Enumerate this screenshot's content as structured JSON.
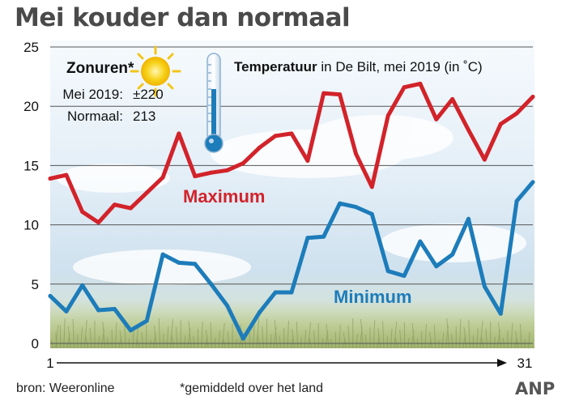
{
  "header": {
    "title": "Mei kouder dan normaal"
  },
  "sun_box": {
    "heading": "Zonuren*",
    "rows": [
      {
        "label": "Mei 2019:",
        "value": "±220"
      },
      {
        "label": "Normaal:",
        "value": "213"
      }
    ]
  },
  "footer": {
    "source": "bron: Weeronline",
    "note": "*gemiddeld over het land",
    "brand": "ANP"
  },
  "colors": {
    "maximum": "#d2232a",
    "minimum": "#1d7cba",
    "grid": "#555555"
  },
  "chart_data": {
    "type": "line",
    "title_bold": "Temperatuur",
    "title_rest": " in De Bilt, mei 2019 (in ˚C)",
    "ylim": [
      0,
      25
    ],
    "yticks": [
      "0",
      "5",
      "10",
      "15",
      "20",
      "25"
    ],
    "xlim": [
      1,
      31
    ],
    "x_start_label": "1",
    "x_end_label": "31",
    "grid": true,
    "x": [
      1,
      2,
      3,
      4,
      5,
      6,
      7,
      8,
      9,
      10,
      11,
      12,
      13,
      14,
      15,
      16,
      17,
      18,
      19,
      20,
      21,
      22,
      23,
      24,
      25,
      26,
      27,
      28,
      29,
      30,
      31
    ],
    "series": [
      {
        "name": "Maximum",
        "values": [
          13.9,
          14.2,
          11.1,
          10.2,
          11.7,
          11.4,
          12.7,
          14.0,
          17.7,
          14.1,
          14.4,
          14.6,
          15.2,
          16.5,
          17.5,
          17.7,
          15.4,
          21.1,
          21.0,
          16.0,
          13.2,
          19.2,
          21.6,
          21.9,
          18.9,
          20.6,
          18.0,
          15.5,
          18.5,
          19.4,
          20.8
        ]
      },
      {
        "name": "Minimum",
        "values": [
          4.0,
          2.7,
          4.9,
          2.8,
          2.9,
          1.1,
          1.9,
          7.5,
          6.8,
          6.7,
          5.0,
          3.2,
          0.4,
          2.6,
          4.3,
          4.3,
          8.9,
          9.0,
          11.8,
          11.5,
          10.9,
          6.1,
          5.7,
          8.6,
          6.5,
          7.5,
          10.5,
          4.8,
          2.5,
          12.0,
          13.6
        ]
      }
    ]
  }
}
